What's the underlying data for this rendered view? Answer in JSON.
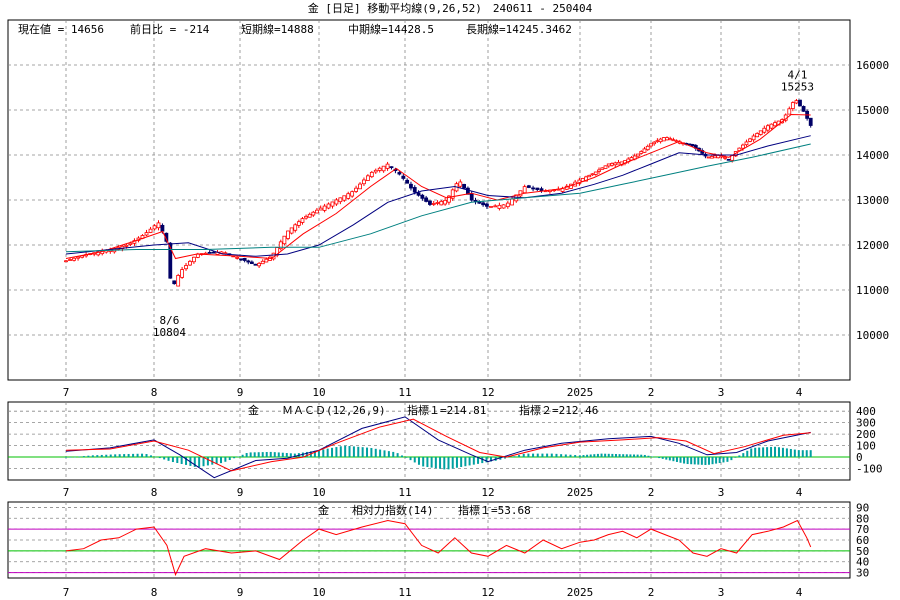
{
  "title": "金 [日足] 移動平均線(9,26,52)　240611 - 250404",
  "x_month_labels": [
    "7",
    "8",
    "9",
    "10",
    "11",
    "12",
    "2025",
    "2",
    "3",
    "4"
  ],
  "colors": {
    "price_up": "#ff0000",
    "price_down": "#000066",
    "ma_short": "#ff0000",
    "ma_mid": "#000080",
    "ma_long": "#008080",
    "macd_line": "#000080",
    "macd_signal": "#ff0000",
    "macd_hist": "#00a0a0",
    "zero_line": "#00c000",
    "rsi_line": "#ff0000",
    "rsi_band_high": "#c000c0",
    "rsi_band_mid": "#00c000"
  },
  "chart_data": [
    {
      "type": "candlestick",
      "info_line": {
        "current": "現在値 = 14656",
        "change": "前日比 = -214",
        "short_ma": "短期線=14888",
        "mid_ma": "中期線=14428.5",
        "long_ma": "長期線=14245.3462"
      },
      "ylim": [
        9000,
        17000
      ],
      "yticks": [
        10000,
        11000,
        12000,
        13000,
        14000,
        15000,
        16000
      ],
      "annotations": [
        {
          "date_label": "8/6",
          "value_label": "10804",
          "value": 10804,
          "month_pos": 1.18,
          "position": "below"
        },
        {
          "date_label": "4/1",
          "value_label": "15253",
          "value": 15253,
          "month_pos": 8.98,
          "position": "above"
        }
      ],
      "price_path": [
        [
          0.0,
          11650
        ],
        [
          0.25,
          11800
        ],
        [
          0.5,
          11900
        ],
        [
          0.7,
          12000
        ],
        [
          0.9,
          12250
        ],
        [
          1.05,
          12500
        ],
        [
          1.1,
          12300
        ],
        [
          1.16,
          12000
        ],
        [
          1.2,
          11000
        ],
        [
          1.3,
          11400
        ],
        [
          1.5,
          11800
        ],
        [
          1.8,
          11850
        ],
        [
          2.0,
          11700
        ],
        [
          2.2,
          11550
        ],
        [
          2.4,
          11750
        ],
        [
          2.6,
          12300
        ],
        [
          2.8,
          12600
        ],
        [
          3.0,
          12800
        ],
        [
          3.2,
          13000
        ],
        [
          3.4,
          13200
        ],
        [
          3.6,
          13600
        ],
        [
          3.8,
          13800
        ],
        [
          3.95,
          13550
        ],
        [
          4.1,
          13200
        ],
        [
          4.3,
          12900
        ],
        [
          4.5,
          13000
        ],
        [
          4.65,
          13450
        ],
        [
          4.8,
          13000
        ],
        [
          5.0,
          12850
        ],
        [
          5.2,
          12900
        ],
        [
          5.4,
          13300
        ],
        [
          5.6,
          13200
        ],
        [
          5.8,
          13250
        ],
        [
          6.0,
          13450
        ],
        [
          6.2,
          13600
        ],
        [
          6.4,
          13800
        ],
        [
          6.6,
          13850
        ],
        [
          6.8,
          14000
        ],
        [
          7.0,
          14250
        ],
        [
          7.2,
          14400
        ],
        [
          7.4,
          14300
        ],
        [
          7.6,
          14200
        ],
        [
          7.8,
          13950
        ],
        [
          8.0,
          14000
        ],
        [
          8.1,
          13900
        ],
        [
          8.2,
          14100
        ],
        [
          8.4,
          14400
        ],
        [
          8.6,
          14650
        ],
        [
          8.8,
          14800
        ],
        [
          8.95,
          15250
        ],
        [
          9.05,
          15000
        ],
        [
          9.15,
          14656
        ]
      ],
      "series": [
        {
          "name": "短期線",
          "key": "ma_short",
          "points": [
            [
              0.0,
              11700
            ],
            [
              0.4,
              11850
            ],
            [
              0.8,
              12100
            ],
            [
              1.1,
              12300
            ],
            [
              1.25,
              11700
            ],
            [
              1.5,
              11800
            ],
            [
              2.0,
              11750
            ],
            [
              2.4,
              11700
            ],
            [
              2.8,
              12250
            ],
            [
              3.2,
              12700
            ],
            [
              3.6,
              13300
            ],
            [
              3.9,
              13700
            ],
            [
              4.2,
              13300
            ],
            [
              4.5,
              13050
            ],
            [
              4.8,
              13150
            ],
            [
              5.1,
              13000
            ],
            [
              5.4,
              13150
            ],
            [
              5.8,
              13250
            ],
            [
              6.2,
              13500
            ],
            [
              6.6,
              13800
            ],
            [
              7.0,
              14050
            ],
            [
              7.4,
              14300
            ],
            [
              7.8,
              14050
            ],
            [
              8.1,
              13950
            ],
            [
              8.5,
              14350
            ],
            [
              8.9,
              14900
            ],
            [
              9.15,
              14888
            ]
          ]
        },
        {
          "name": "中期線",
          "key": "ma_mid",
          "points": [
            [
              0.0,
              11800
            ],
            [
              0.5,
              11900
            ],
            [
              1.0,
              12000
            ],
            [
              1.4,
              12050
            ],
            [
              1.8,
              11800
            ],
            [
              2.2,
              11750
            ],
            [
              2.6,
              11800
            ],
            [
              3.0,
              12000
            ],
            [
              3.4,
              12450
            ],
            [
              3.8,
              12950
            ],
            [
              4.2,
              13200
            ],
            [
              4.6,
              13300
            ],
            [
              5.0,
              13100
            ],
            [
              5.4,
              13050
            ],
            [
              5.8,
              13150
            ],
            [
              6.2,
              13350
            ],
            [
              6.6,
              13550
            ],
            [
              7.0,
              13800
            ],
            [
              7.4,
              14050
            ],
            [
              7.8,
              14000
            ],
            [
              8.2,
              14000
            ],
            [
              8.6,
              14200
            ],
            [
              9.15,
              14428
            ]
          ]
        },
        {
          "name": "長期線",
          "key": "ma_long",
          "points": [
            [
              0.0,
              11850
            ],
            [
              0.8,
              11900
            ],
            [
              1.6,
              11900
            ],
            [
              2.4,
              11950
            ],
            [
              3.0,
              11950
            ],
            [
              3.6,
              12250
            ],
            [
              4.2,
              12650
            ],
            [
              4.8,
              12950
            ],
            [
              5.4,
              13050
            ],
            [
              6.0,
              13150
            ],
            [
              6.6,
              13350
            ],
            [
              7.2,
              13550
            ],
            [
              7.8,
              13750
            ],
            [
              8.4,
              13950
            ],
            [
              9.15,
              14245
            ]
          ]
        }
      ]
    },
    {
      "type": "line",
      "label_market": "金",
      "label_indicator": "ＭＡＣＤ(12,26,9)",
      "label_value1": "指標１=214.81",
      "label_value2": "指標２=212.46",
      "ylim": [
        -200,
        480
      ],
      "yticks": [
        400,
        300,
        200,
        100,
        0,
        -100
      ],
      "ytick_labels": [
        "400",
        "300",
        "200",
        "100",
        "0",
        "-100"
      ],
      "series": [
        {
          "name": "指標１",
          "key": "macd_line",
          "points": [
            [
              0.0,
              50
            ],
            [
              0.5,
              80
            ],
            [
              1.0,
              150
            ],
            [
              1.3,
              20
            ],
            [
              1.7,
              -180
            ],
            [
              2.2,
              -30
            ],
            [
              2.6,
              -10
            ],
            [
              3.0,
              60
            ],
            [
              3.5,
              250
            ],
            [
              4.0,
              350
            ],
            [
              4.4,
              150
            ],
            [
              4.8,
              20
            ],
            [
              5.0,
              -40
            ],
            [
              5.4,
              60
            ],
            [
              5.8,
              120
            ],
            [
              6.4,
              160
            ],
            [
              7.0,
              180
            ],
            [
              7.4,
              120
            ],
            [
              7.8,
              20
            ],
            [
              8.2,
              40
            ],
            [
              8.6,
              140
            ],
            [
              9.15,
              214.81
            ]
          ]
        },
        {
          "name": "指標２",
          "key": "macd_signal",
          "points": [
            [
              0.0,
              60
            ],
            [
              0.5,
              70
            ],
            [
              1.0,
              140
            ],
            [
              1.4,
              60
            ],
            [
              1.9,
              -120
            ],
            [
              2.4,
              -40
            ],
            [
              2.8,
              0
            ],
            [
              3.2,
              120
            ],
            [
              3.7,
              260
            ],
            [
              4.1,
              330
            ],
            [
              4.5,
              180
            ],
            [
              4.9,
              40
            ],
            [
              5.2,
              0
            ],
            [
              5.6,
              80
            ],
            [
              6.0,
              130
            ],
            [
              6.6,
              150
            ],
            [
              7.1,
              170
            ],
            [
              7.5,
              140
            ],
            [
              7.9,
              30
            ],
            [
              8.3,
              90
            ],
            [
              8.8,
              190
            ],
            [
              9.15,
              212.46
            ]
          ]
        }
      ],
      "histogram": [
        [
          0.0,
          -5
        ],
        [
          0.3,
          15
        ],
        [
          0.6,
          25
        ],
        [
          0.9,
          30
        ],
        [
          1.2,
          -40
        ],
        [
          1.5,
          -90
        ],
        [
          1.8,
          -50
        ],
        [
          2.1,
          40
        ],
        [
          2.4,
          45
        ],
        [
          2.7,
          30
        ],
        [
          3.0,
          60
        ],
        [
          3.3,
          100
        ],
        [
          3.6,
          80
        ],
        [
          3.9,
          40
        ],
        [
          4.2,
          -80
        ],
        [
          4.5,
          -110
        ],
        [
          4.8,
          -70
        ],
        [
          5.1,
          -30
        ],
        [
          5.4,
          30
        ],
        [
          5.7,
          30
        ],
        [
          6.0,
          15
        ],
        [
          6.3,
          30
        ],
        [
          6.6,
          25
        ],
        [
          6.9,
          20
        ],
        [
          7.2,
          -20
        ],
        [
          7.5,
          -60
        ],
        [
          7.8,
          -70
        ],
        [
          8.1,
          -40
        ],
        [
          8.4,
          80
        ],
        [
          8.7,
          90
        ],
        [
          9.0,
          60
        ]
      ]
    },
    {
      "type": "line",
      "label_market": "金",
      "label_indicator": "相対力指数(14)",
      "label_value1": "指標１=53.68",
      "ylim": [
        25,
        95
      ],
      "yticks": [
        90,
        80,
        70,
        60,
        50,
        40,
        30
      ],
      "ytick_labels": [
        "90",
        "80",
        "70",
        "60",
        "50",
        "40",
        "30"
      ],
      "bands": [
        {
          "value": 70,
          "key": "rsi_band_high"
        },
        {
          "value": 50,
          "key": "rsi_band_mid"
        },
        {
          "value": 30,
          "key": "rsi_band_high"
        }
      ],
      "series": [
        {
          "name": "指標１",
          "key": "rsi_line",
          "points": [
            [
              0.0,
              50
            ],
            [
              0.2,
              52
            ],
            [
              0.4,
              60
            ],
            [
              0.6,
              62
            ],
            [
              0.8,
              70
            ],
            [
              1.0,
              72
            ],
            [
              1.15,
              55
            ],
            [
              1.25,
              28
            ],
            [
              1.35,
              45
            ],
            [
              1.6,
              52
            ],
            [
              1.9,
              48
            ],
            [
              2.2,
              50
            ],
            [
              2.5,
              42
            ],
            [
              2.8,
              60
            ],
            [
              3.0,
              70
            ],
            [
              3.2,
              65
            ],
            [
              3.5,
              72
            ],
            [
              3.8,
              78
            ],
            [
              4.0,
              75
            ],
            [
              4.2,
              55
            ],
            [
              4.4,
              48
            ],
            [
              4.6,
              62
            ],
            [
              4.8,
              48
            ],
            [
              5.0,
              45
            ],
            [
              5.2,
              55
            ],
            [
              5.4,
              48
            ],
            [
              5.6,
              60
            ],
            [
              5.8,
              52
            ],
            [
              6.0,
              58
            ],
            [
              6.2,
              60
            ],
            [
              6.4,
              65
            ],
            [
              6.6,
              68
            ],
            [
              6.8,
              62
            ],
            [
              7.0,
              70
            ],
            [
              7.2,
              65
            ],
            [
              7.4,
              60
            ],
            [
              7.6,
              48
            ],
            [
              7.8,
              45
            ],
            [
              8.0,
              52
            ],
            [
              8.2,
              48
            ],
            [
              8.4,
              65
            ],
            [
              8.6,
              68
            ],
            [
              8.8,
              72
            ],
            [
              8.98,
              78
            ],
            [
              9.1,
              62
            ],
            [
              9.15,
              53.68
            ]
          ]
        }
      ]
    }
  ]
}
